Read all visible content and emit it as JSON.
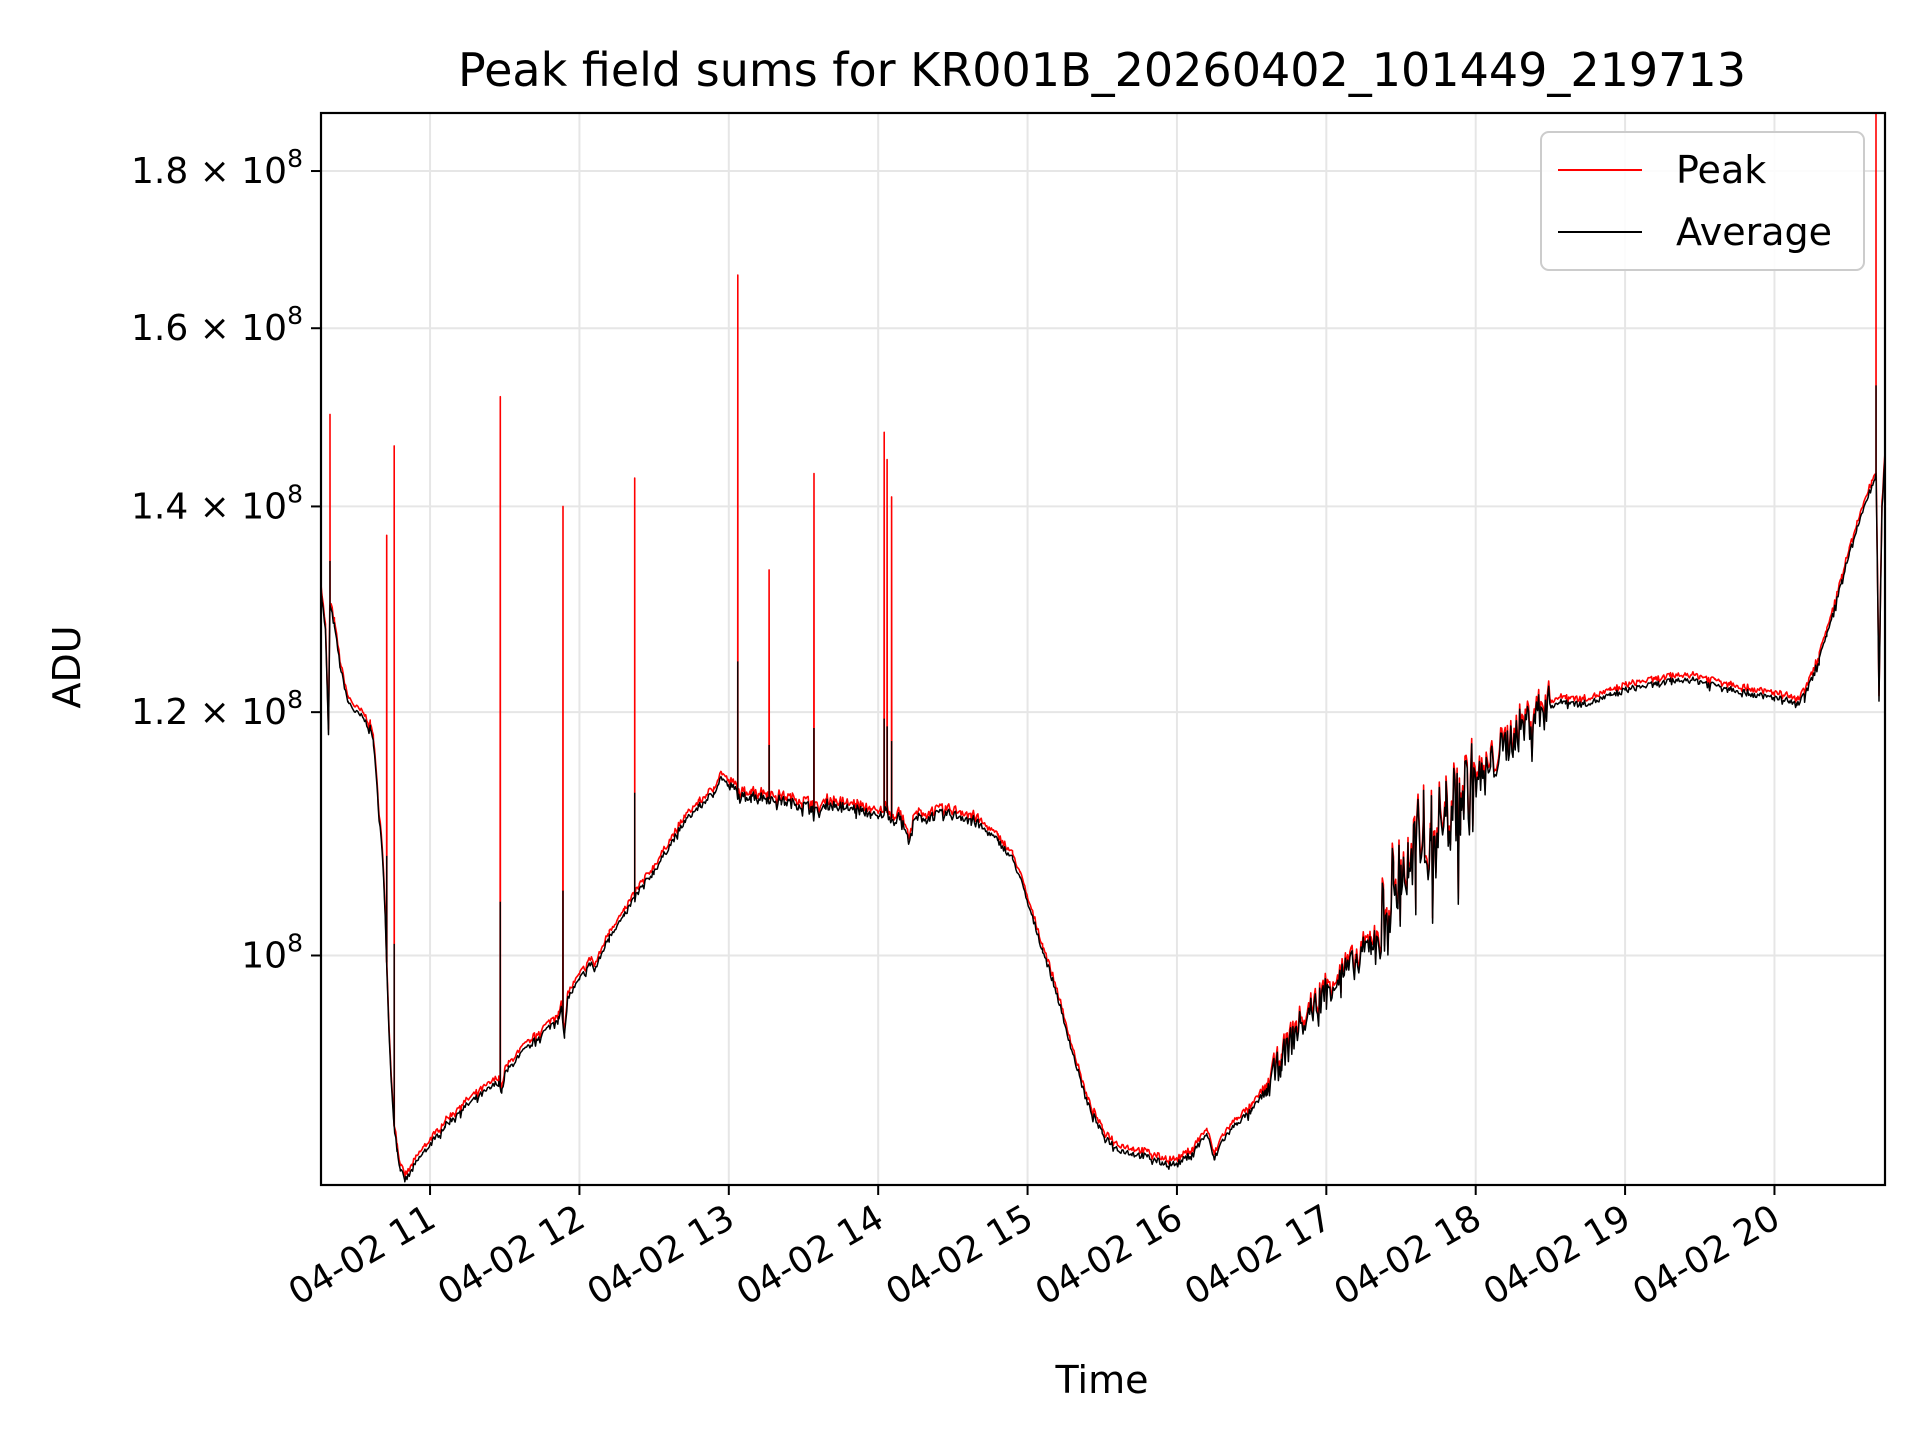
{
  "chart_data": {
    "type": "line",
    "title": "Peak field sums for KR001B_20260402_101449_219713",
    "xlabel": "Time",
    "ylabel": "ADU",
    "yscale": "log",
    "xlim": [
      10.27,
      20.74
    ],
    "ylim": [
      84200000,
      188000000
    ],
    "x_tick_values": [
      11,
      12,
      13,
      14,
      15,
      16,
      17,
      18,
      19,
      20
    ],
    "x_tick_labels": [
      "04-02 11",
      "04-02 12",
      "04-02 13",
      "04-02 14",
      "04-02 15",
      "04-02 16",
      "04-02 17",
      "04-02 18",
      "04-02 19",
      "04-02 20"
    ],
    "y_ticks": [
      {
        "value": 100000000,
        "mantissa": "",
        "exponent": "8"
      },
      {
        "value": 120000000,
        "mantissa": "1.2",
        "exponent": "8"
      },
      {
        "value": 140000000,
        "mantissa": "1.4",
        "exponent": "8"
      },
      {
        "value": 160000000,
        "mantissa": "1.6",
        "exponent": "8"
      },
      {
        "value": 180000000,
        "mantissa": "1.8",
        "exponent": "8"
      }
    ],
    "grid": true,
    "legend": {
      "placement": "top-right",
      "entries": [
        "Peak",
        "Average"
      ]
    },
    "series": [
      {
        "name": "Average",
        "color": "#000000",
        "points": [
          [
            10.27,
            131.5
          ],
          [
            10.3,
            127.5
          ],
          [
            10.32,
            118.0
          ],
          [
            10.33,
            130.0
          ],
          [
            10.36,
            128.0
          ],
          [
            10.4,
            124.0
          ],
          [
            10.45,
            121.0
          ],
          [
            10.5,
            120.0
          ],
          [
            10.55,
            119.5
          ],
          [
            10.6,
            118.5
          ],
          [
            10.62,
            117.5
          ],
          [
            10.65,
            112.5
          ],
          [
            10.68,
            108.0
          ],
          [
            10.7,
            103.0
          ],
          [
            10.72,
            96.0
          ],
          [
            10.74,
            91.0
          ],
          [
            10.76,
            88.0
          ],
          [
            10.78,
            86.5
          ],
          [
            10.8,
            85.2
          ],
          [
            10.83,
            84.5
          ],
          [
            10.86,
            84.8
          ],
          [
            10.9,
            85.5
          ],
          [
            10.95,
            86.2
          ],
          [
            11.0,
            86.8
          ],
          [
            11.1,
            88.0
          ],
          [
            11.2,
            89.0
          ],
          [
            11.3,
            89.8
          ],
          [
            11.4,
            90.5
          ],
          [
            11.46,
            91.0
          ],
          [
            11.48,
            90.2
          ],
          [
            11.5,
            91.5
          ],
          [
            11.6,
            92.8
          ],
          [
            11.7,
            93.8
          ],
          [
            11.8,
            94.8
          ],
          [
            11.86,
            95.5
          ],
          [
            11.88,
            96.2
          ],
          [
            11.9,
            94.0
          ],
          [
            11.92,
            96.8
          ],
          [
            12.0,
            98.2
          ],
          [
            12.08,
            99.5
          ],
          [
            12.1,
            98.8
          ],
          [
            12.2,
            101.5
          ],
          [
            12.3,
            103.0
          ],
          [
            12.37,
            104.5
          ],
          [
            12.4,
            105.0
          ],
          [
            12.5,
            106.5
          ],
          [
            12.6,
            108.5
          ],
          [
            12.7,
            110.5
          ],
          [
            12.8,
            111.8
          ],
          [
            12.9,
            113.0
          ],
          [
            12.95,
            114.3
          ],
          [
            13.0,
            113.5
          ],
          [
            13.05,
            113.2
          ],
          [
            13.07,
            112.5
          ],
          [
            13.15,
            112.8
          ],
          [
            13.25,
            112.5
          ],
          [
            13.35,
            112.3
          ],
          [
            13.45,
            112.0
          ],
          [
            13.55,
            111.8
          ],
          [
            13.6,
            111.2
          ],
          [
            13.65,
            112.0
          ],
          [
            13.75,
            111.8
          ],
          [
            13.85,
            111.6
          ],
          [
            13.95,
            111.2
          ],
          [
            14.0,
            110.8
          ],
          [
            14.05,
            111.5
          ],
          [
            14.1,
            110.6
          ],
          [
            14.15,
            111.0
          ],
          [
            14.2,
            109.0
          ],
          [
            14.25,
            110.8
          ],
          [
            14.35,
            111.0
          ],
          [
            14.45,
            111.2
          ],
          [
            14.55,
            111.0
          ],
          [
            14.62,
            110.8
          ],
          [
            14.7,
            110.0
          ],
          [
            14.8,
            109.0
          ],
          [
            14.9,
            107.5
          ],
          [
            14.95,
            106.0
          ],
          [
            15.0,
            104.0
          ],
          [
            15.1,
            100.5
          ],
          [
            15.2,
            97.0
          ],
          [
            15.3,
            93.0
          ],
          [
            15.4,
            89.5
          ],
          [
            15.5,
            87.5
          ],
          [
            15.6,
            86.5
          ],
          [
            15.7,
            86.2
          ],
          [
            15.8,
            86.0
          ],
          [
            15.9,
            85.6
          ],
          [
            16.0,
            85.5
          ],
          [
            16.1,
            86.2
          ],
          [
            16.2,
            87.5
          ],
          [
            16.25,
            85.8
          ],
          [
            16.3,
            87.0
          ],
          [
            16.4,
            88.2
          ],
          [
            16.5,
            89.0
          ],
          [
            16.6,
            90.5
          ],
          [
            16.7,
            92.5
          ],
          [
            16.8,
            94.5
          ],
          [
            16.9,
            96.0
          ],
          [
            17.0,
            97.5
          ],
          [
            17.1,
            98.5
          ],
          [
            17.2,
            99.5
          ],
          [
            17.3,
            101.0
          ],
          [
            17.4,
            103.0
          ],
          [
            17.45,
            105.5
          ],
          [
            17.5,
            107.0
          ],
          [
            17.55,
            106.0
          ],
          [
            17.6,
            108.0
          ],
          [
            17.65,
            110.5
          ],
          [
            17.7,
            109.0
          ],
          [
            17.8,
            111.0
          ],
          [
            17.9,
            112.5
          ],
          [
            18.0,
            113.8
          ],
          [
            18.1,
            115.2
          ],
          [
            18.2,
            117.0
          ],
          [
            18.3,
            118.5
          ],
          [
            18.4,
            119.8
          ],
          [
            18.5,
            120.6
          ],
          [
            18.6,
            121.0
          ],
          [
            18.7,
            120.7
          ],
          [
            18.8,
            121.0
          ],
          [
            18.9,
            121.5
          ],
          [
            19.0,
            122.0
          ],
          [
            19.1,
            122.3
          ],
          [
            19.2,
            122.5
          ],
          [
            19.3,
            122.8
          ],
          [
            19.4,
            123.0
          ],
          [
            19.5,
            122.8
          ],
          [
            19.6,
            122.5
          ],
          [
            19.7,
            122.2
          ],
          [
            19.8,
            121.8
          ],
          [
            19.9,
            121.5
          ],
          [
            20.0,
            121.3
          ],
          [
            20.1,
            121.0
          ],
          [
            20.15,
            120.6
          ],
          [
            20.2,
            121.5
          ],
          [
            20.25,
            123.0
          ],
          [
            20.3,
            125.0
          ],
          [
            20.35,
            127.0
          ],
          [
            20.4,
            129.5
          ],
          [
            20.45,
            132.5
          ],
          [
            20.5,
            135.0
          ],
          [
            20.55,
            137.5
          ],
          [
            20.6,
            140.0
          ],
          [
            20.65,
            142.0
          ],
          [
            20.68,
            143.5
          ],
          [
            20.7,
            121.0
          ],
          [
            20.72,
            140.0
          ],
          [
            20.74,
            145.0
          ]
        ]
      },
      {
        "name": "Peak",
        "color": "#ff0000",
        "spikes": [
          [
            10.33,
            150.0
          ],
          [
            10.71,
            137.0
          ],
          [
            10.76,
            146.5
          ],
          [
            11.47,
            152.0
          ],
          [
            11.89,
            140.0
          ],
          [
            12.37,
            143.0
          ],
          [
            13.06,
            166.5
          ],
          [
            13.27,
            133.5
          ],
          [
            13.57,
            143.5
          ],
          [
            14.04,
            148.0
          ],
          [
            14.06,
            145.0
          ],
          [
            14.09,
            141.0
          ],
          [
            20.68,
            188.0
          ]
        ]
      }
    ]
  }
}
